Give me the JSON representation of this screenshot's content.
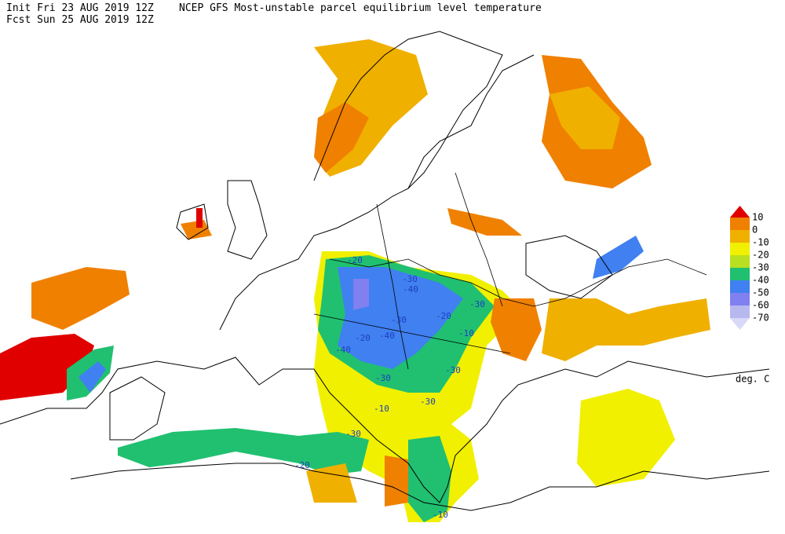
{
  "header": {
    "init": "Init  Fri 23 AUG 2019 12Z",
    "title": "NCEP GFS Most-unstable parcel equilibrium level temperature",
    "fcst": "Fcst Sun 25 AUG 2019 12Z"
  },
  "legend": {
    "labels": [
      10,
      0,
      -10,
      -20,
      -30,
      -40,
      -50,
      -60,
      -70
    ],
    "colors": [
      "#e00000",
      "#f08000",
      "#f0b000",
      "#f0f000",
      "#b8e020",
      "#20c070",
      "#4080f0",
      "#8080f0",
      "#b8b8f0",
      "#d8d8f8"
    ],
    "unit": "deg. C"
  },
  "contour_labels": [
    -20,
    -30,
    -40,
    -30,
    -20,
    -30,
    -10,
    -20,
    -40,
    -40,
    -30,
    -30,
    -10,
    -30,
    -30,
    -20,
    -10
  ]
}
